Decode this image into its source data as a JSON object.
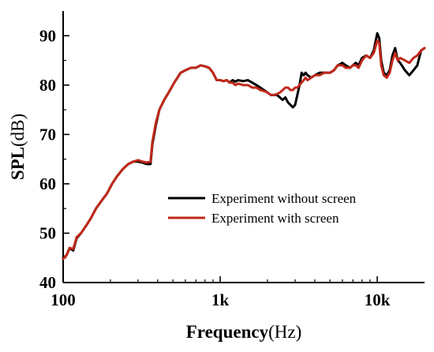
{
  "chart_data": {
    "type": "line",
    "title": "",
    "xlabel": "Frequency(Hz)",
    "xlabel_bold_part": "Frequency",
    "xlabel_unit_part": "(Hz)",
    "ylabel": "SPL(dB)",
    "ylabel_bold_part": "SPL",
    "ylabel_unit_part": "(dB)",
    "xscale": "log",
    "xlim": [
      100,
      20000
    ],
    "ylim": [
      40,
      95
    ],
    "x_ticks": [
      100,
      1000,
      10000
    ],
    "x_tick_labels": [
      "100",
      "1k",
      "10k"
    ],
    "y_ticks": [
      40,
      50,
      60,
      70,
      80,
      90
    ],
    "y_tick_labels": [
      "40",
      "50",
      "60",
      "70",
      "80",
      "90"
    ],
    "grid": false,
    "legend_position": "center-right",
    "series": [
      {
        "name": "Experiment without screen",
        "color": "#000000",
        "points": [
          [
            100,
            45
          ],
          [
            105,
            45.5
          ],
          [
            110,
            47
          ],
          [
            116,
            46.5
          ],
          [
            122,
            49
          ],
          [
            130,
            50
          ],
          [
            140,
            51.5
          ],
          [
            150,
            53
          ],
          [
            162,
            55
          ],
          [
            175,
            56.5
          ],
          [
            190,
            58
          ],
          [
            205,
            60
          ],
          [
            220,
            61.5
          ],
          [
            240,
            63
          ],
          [
            260,
            64
          ],
          [
            280,
            64.5
          ],
          [
            300,
            64.5
          ],
          [
            320,
            64.3
          ],
          [
            340,
            64
          ],
          [
            360,
            64
          ],
          [
            370,
            68
          ],
          [
            390,
            72
          ],
          [
            410,
            75
          ],
          [
            440,
            77
          ],
          [
            470,
            78.5
          ],
          [
            510,
            80.5
          ],
          [
            560,
            82.5
          ],
          [
            600,
            83
          ],
          [
            650,
            83.5
          ],
          [
            700,
            83.5
          ],
          [
            750,
            84
          ],
          [
            800,
            83.8
          ],
          [
            850,
            83.5
          ],
          [
            900,
            82.5
          ],
          [
            950,
            81
          ],
          [
            1000,
            81
          ],
          [
            1050,
            80.8
          ],
          [
            1100,
            81
          ],
          [
            1150,
            80.5
          ],
          [
            1200,
            81
          ],
          [
            1250,
            80.7
          ],
          [
            1300,
            81
          ],
          [
            1400,
            80.8
          ],
          [
            1500,
            81
          ],
          [
            1600,
            80.5
          ],
          [
            1700,
            80
          ],
          [
            1800,
            79.5
          ],
          [
            1900,
            79
          ],
          [
            2000,
            78.5
          ],
          [
            2100,
            78
          ],
          [
            2200,
            78
          ],
          [
            2300,
            78
          ],
          [
            2400,
            77.5
          ],
          [
            2500,
            77
          ],
          [
            2600,
            77.5
          ],
          [
            2700,
            76.5
          ],
          [
            2800,
            76
          ],
          [
            2900,
            75.5
          ],
          [
            3000,
            76
          ],
          [
            3100,
            78
          ],
          [
            3200,
            80
          ],
          [
            3300,
            82.5
          ],
          [
            3400,
            82
          ],
          [
            3500,
            82.5
          ],
          [
            3600,
            82
          ],
          [
            3800,
            81.5
          ],
          [
            4000,
            82
          ],
          [
            4300,
            82.5
          ],
          [
            4600,
            82.5
          ],
          [
            5000,
            82.5
          ],
          [
            5300,
            83
          ],
          [
            5600,
            84
          ],
          [
            6000,
            84.5
          ],
          [
            6300,
            84
          ],
          [
            6700,
            83.5
          ],
          [
            7000,
            84
          ],
          [
            7300,
            84.5
          ],
          [
            7600,
            84
          ],
          [
            8000,
            85.5
          ],
          [
            8500,
            86
          ],
          [
            9000,
            85.5
          ],
          [
            9500,
            87
          ],
          [
            10000,
            90.5
          ],
          [
            10300,
            89.5
          ],
          [
            10600,
            85
          ],
          [
            11000,
            82.5
          ],
          [
            11500,
            82
          ],
          [
            12000,
            83
          ],
          [
            12500,
            86
          ],
          [
            13000,
            87.5
          ],
          [
            13500,
            85
          ],
          [
            14000,
            84.5
          ],
          [
            15000,
            83
          ],
          [
            16000,
            82
          ],
          [
            17000,
            83
          ],
          [
            18000,
            84
          ],
          [
            19000,
            87
          ],
          [
            20000,
            87.5
          ]
        ]
      },
      {
        "name": "Experiment  with screen",
        "color": "#c0281a",
        "points": [
          [
            100,
            44.8
          ],
          [
            105,
            45.5
          ],
          [
            110,
            47
          ],
          [
            116,
            46.8
          ],
          [
            122,
            49.2
          ],
          [
            130,
            50
          ],
          [
            140,
            51.5
          ],
          [
            150,
            53
          ],
          [
            162,
            55
          ],
          [
            175,
            56.5
          ],
          [
            190,
            58
          ],
          [
            205,
            60
          ],
          [
            220,
            61.5
          ],
          [
            240,
            63
          ],
          [
            260,
            64
          ],
          [
            280,
            64.5
          ],
          [
            300,
            64.8
          ],
          [
            320,
            64.5
          ],
          [
            340,
            64.3
          ],
          [
            360,
            64.5
          ],
          [
            370,
            68.5
          ],
          [
            390,
            72.5
          ],
          [
            410,
            75
          ],
          [
            440,
            77
          ],
          [
            470,
            78.5
          ],
          [
            510,
            80.5
          ],
          [
            560,
            82.5
          ],
          [
            600,
            83
          ],
          [
            650,
            83.5
          ],
          [
            700,
            83.5
          ],
          [
            750,
            84
          ],
          [
            800,
            83.8
          ],
          [
            850,
            83.5
          ],
          [
            900,
            82.5
          ],
          [
            950,
            81
          ],
          [
            1000,
            81
          ],
          [
            1050,
            80.8
          ],
          [
            1100,
            81
          ],
          [
            1150,
            80.5
          ],
          [
            1200,
            80.5
          ],
          [
            1250,
            80
          ],
          [
            1300,
            80.3
          ],
          [
            1400,
            80
          ],
          [
            1500,
            80
          ],
          [
            1600,
            79.5
          ],
          [
            1700,
            79.5
          ],
          [
            1800,
            79
          ],
          [
            1900,
            78.8
          ],
          [
            2000,
            78.5
          ],
          [
            2100,
            78
          ],
          [
            2200,
            78
          ],
          [
            2300,
            78.2
          ],
          [
            2400,
            78.5
          ],
          [
            2500,
            79
          ],
          [
            2600,
            79.5
          ],
          [
            2700,
            79.5
          ],
          [
            2800,
            79
          ],
          [
            2900,
            79
          ],
          [
            3000,
            79.5
          ],
          [
            3100,
            79.5
          ],
          [
            3200,
            80
          ],
          [
            3300,
            80.5
          ],
          [
            3400,
            81
          ],
          [
            3500,
            81.5
          ],
          [
            3600,
            81
          ],
          [
            3800,
            81.5
          ],
          [
            4000,
            82
          ],
          [
            4300,
            82
          ],
          [
            4600,
            82.5
          ],
          [
            5000,
            82.5
          ],
          [
            5300,
            83
          ],
          [
            5600,
            84
          ],
          [
            6000,
            84
          ],
          [
            6300,
            83.5
          ],
          [
            6700,
            83.5
          ],
          [
            7000,
            84
          ],
          [
            7300,
            84
          ],
          [
            7600,
            83.5
          ],
          [
            8000,
            85
          ],
          [
            8500,
            86
          ],
          [
            9000,
            85.5
          ],
          [
            9500,
            86.5
          ],
          [
            10000,
            89
          ],
          [
            10300,
            88.5
          ],
          [
            10600,
            84
          ],
          [
            11000,
            82
          ],
          [
            11500,
            81.5
          ],
          [
            12000,
            82.5
          ],
          [
            12500,
            85
          ],
          [
            13000,
            86.5
          ],
          [
            13500,
            85
          ],
          [
            14000,
            85.5
          ],
          [
            15000,
            85
          ],
          [
            16000,
            84.5
          ],
          [
            17000,
            85.5
          ],
          [
            18000,
            86
          ],
          [
            19000,
            87
          ],
          [
            20000,
            87.5
          ]
        ]
      }
    ]
  }
}
